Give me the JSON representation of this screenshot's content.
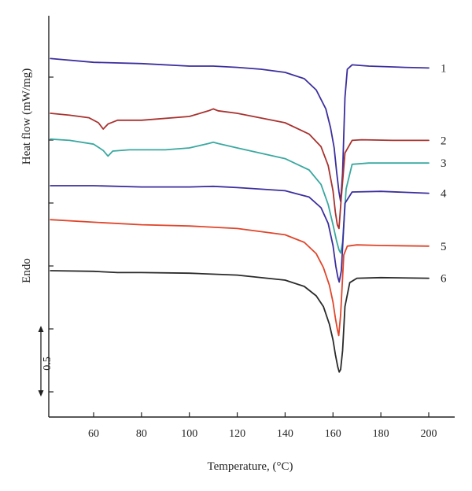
{
  "chart_data": {
    "type": "line",
    "xlabel": "Temperature, (°C)",
    "ylabel": "Heat flow (mW/mg)",
    "ylabel_secondary": "Endo",
    "scale_bar_label": "0.5",
    "xlim": [
      42,
      210
    ],
    "xticks": [
      60,
      80,
      100,
      120,
      140,
      160,
      180,
      200
    ],
    "grid": false,
    "series": [
      {
        "name": "1",
        "color": "#3b2f9e",
        "x": [
          42,
          60,
          80,
          100,
          110,
          120,
          130,
          140,
          148,
          153,
          157,
          159,
          160.5,
          161.5,
          162.5,
          163.2,
          164,
          165,
          166,
          168,
          175,
          190,
          200
        ],
        "y": [
          5.42,
          5.36,
          5.34,
          5.3,
          5.3,
          5.28,
          5.25,
          5.2,
          5.1,
          4.92,
          4.62,
          4.32,
          4.0,
          3.62,
          3.3,
          3.15,
          3.6,
          4.8,
          5.25,
          5.32,
          5.3,
          5.28,
          5.27
        ]
      },
      {
        "name": "2",
        "color": "#a8322f",
        "x": [
          42,
          50,
          58,
          62,
          64,
          66,
          70,
          80,
          100,
          108,
          110,
          112,
          120,
          140,
          150,
          155,
          158,
          160,
          161,
          161.8,
          162.5,
          163.5,
          165,
          168,
          172,
          185,
          200
        ],
        "y": [
          4.55,
          4.52,
          4.48,
          4.4,
          4.3,
          4.38,
          4.44,
          4.44,
          4.5,
          4.59,
          4.62,
          4.59,
          4.55,
          4.4,
          4.22,
          4.02,
          3.72,
          3.32,
          2.98,
          2.78,
          2.72,
          3.22,
          3.92,
          4.12,
          4.13,
          4.12,
          4.12
        ]
      },
      {
        "name": "3",
        "color": "#3aa8a0",
        "x": [
          42,
          50,
          60,
          64,
          66,
          68,
          75,
          90,
          100,
          108,
          110,
          112,
          120,
          140,
          150,
          155,
          158,
          160,
          161.5,
          162.5,
          163.2,
          164,
          165.5,
          168,
          175,
          190,
          200
        ],
        "y": [
          4.14,
          4.12,
          4.06,
          3.96,
          3.87,
          3.95,
          3.97,
          3.97,
          4.0,
          4.07,
          4.09,
          4.07,
          4.0,
          3.83,
          3.65,
          3.42,
          3.1,
          2.78,
          2.52,
          2.38,
          2.33,
          2.5,
          3.35,
          3.74,
          3.76,
          3.76,
          3.76
        ]
      },
      {
        "name": "4",
        "color": "#3b2f9e",
        "x": [
          42,
          60,
          80,
          100,
          110,
          120,
          140,
          150,
          155,
          158,
          160,
          161.2,
          162,
          162.6,
          163.5,
          165,
          168,
          180,
          200
        ],
        "y": [
          3.4,
          3.4,
          3.38,
          3.38,
          3.39,
          3.37,
          3.32,
          3.22,
          3.05,
          2.8,
          2.45,
          2.12,
          1.95,
          1.87,
          2.05,
          3.12,
          3.3,
          3.31,
          3.28
        ]
      },
      {
        "name": "5",
        "color": "#e0452a",
        "x": [
          42,
          60,
          80,
          100,
          120,
          140,
          148,
          153,
          156,
          158.5,
          160,
          161,
          161.8,
          162.4,
          163.2,
          164.5,
          166,
          170,
          180,
          200
        ],
        "y": [
          2.86,
          2.82,
          2.78,
          2.76,
          2.72,
          2.62,
          2.5,
          2.32,
          2.1,
          1.82,
          1.55,
          1.3,
          1.12,
          1.02,
          1.35,
          2.3,
          2.44,
          2.46,
          2.45,
          2.44
        ]
      },
      {
        "name": "6",
        "color": "#2a2a2a",
        "x": [
          42,
          60,
          70,
          80,
          100,
          120,
          140,
          148,
          153,
          156,
          158.5,
          160,
          161,
          162,
          162.6,
          163.2,
          164,
          165,
          167,
          170,
          180,
          200
        ],
        "y": [
          2.05,
          2.04,
          2.02,
          2.02,
          2.01,
          1.98,
          1.9,
          1.8,
          1.65,
          1.48,
          1.2,
          0.95,
          0.72,
          0.52,
          0.44,
          0.48,
          0.78,
          1.48,
          1.86,
          1.93,
          1.94,
          1.93
        ]
      }
    ]
  }
}
